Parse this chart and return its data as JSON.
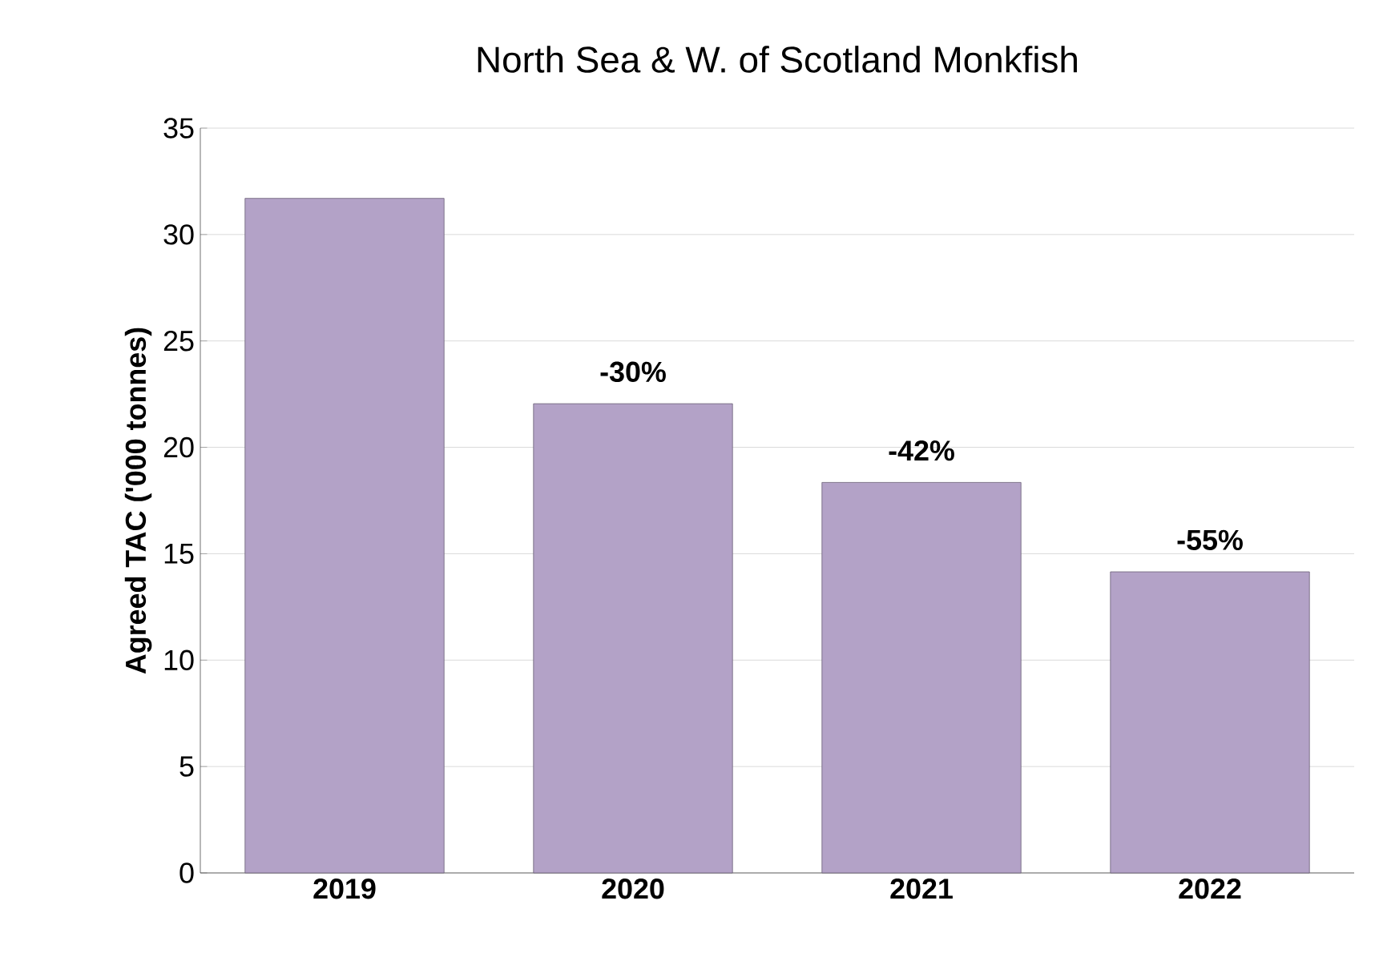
{
  "chart_data": {
    "type": "bar",
    "title": "North Sea & W. of Scotland Monkfish",
    "ylabel": "Agreed TAC ('000 tonnes)",
    "categories": [
      "2019",
      "2020",
      "2021",
      "2022"
    ],
    "values": [
      31.7,
      22.05,
      18.35,
      14.15
    ],
    "annotations": [
      {
        "text": "-30%",
        "x": "2020",
        "y": 22.05
      },
      {
        "text": "-42%",
        "x": "2021",
        "y": 18.35
      },
      {
        "text": "-55%",
        "x": "2022",
        "y": 14.15
      }
    ],
    "color": "#b3a2c7",
    "ylim": [
      0,
      35
    ],
    "yticks": [
      0,
      5,
      10,
      15,
      20,
      25,
      30,
      35
    ],
    "grid": "y"
  }
}
